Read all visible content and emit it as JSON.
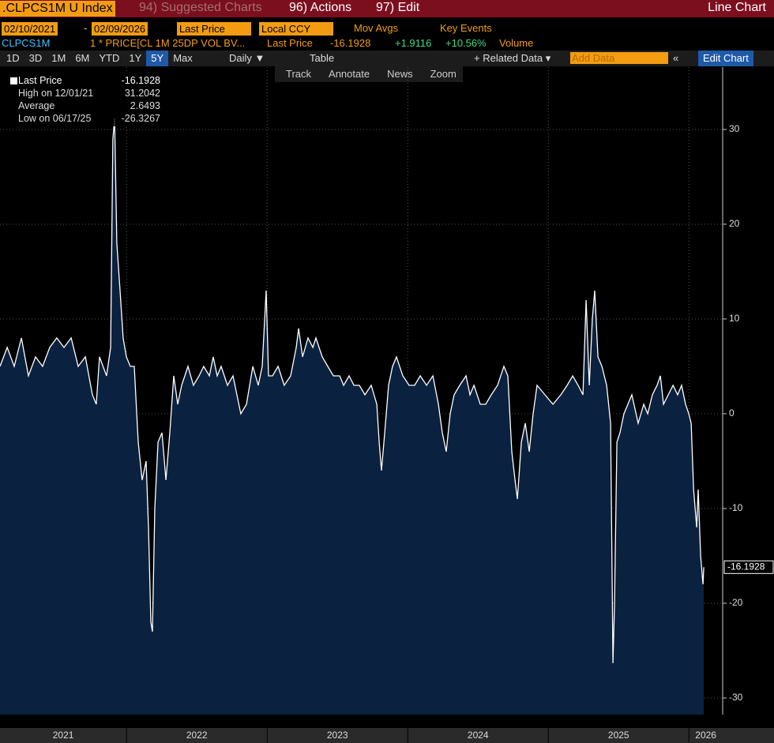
{
  "toolbar": {
    "ticker": ".CLPCS1M U Index",
    "suggested": "94) Suggested Charts",
    "actions": "96) Actions",
    "edit": "97) Edit",
    "chart_kind": "Line Chart"
  },
  "controls": {
    "start_date": "02/10/2021",
    "dash": "-",
    "end_date": "02/09/2026",
    "field": "Last Price",
    "currency": "Local CCY",
    "mov_avgs": "Mov Avgs",
    "key_events": "Key Events"
  },
  "security_line": {
    "name": "CLPCS1M",
    "expression": "1 * PRICE[CL 1M 25DP VOL BV...",
    "field": "Last Price",
    "last": "-16.1928",
    "change": "+1.9116",
    "pct_change": "+10.56%",
    "volume": "Volume"
  },
  "periods": [
    "1D",
    "3D",
    "1M",
    "6M",
    "YTD",
    "1Y",
    "5Y",
    "Max"
  ],
  "frequency": "Daily ▼",
  "table": "Table",
  "related_data": "+ Related Data ▾",
  "add_data": "Add Data",
  "collapse": "«",
  "edit_chart": "Edit Chart",
  "tools": [
    "Track",
    "Annotate",
    "News",
    "Zoom"
  ],
  "chart_data": {
    "type": "line",
    "x": [
      2021.1,
      2021.151,
      2021.201,
      2021.252,
      2021.302,
      2021.353,
      2021.403,
      2021.454,
      2021.504,
      2021.555,
      2021.606,
      2021.656,
      2021.707,
      2021.757,
      2021.785,
      2021.808,
      2021.858,
      2021.887,
      2021.903,
      2021.915,
      2021.931,
      2021.954,
      2021.976,
      2021.999,
      2022.027,
      2022.055,
      2022.083,
      2022.111,
      2022.139,
      2022.156,
      2022.173,
      2022.184,
      2022.201,
      2022.224,
      2022.252,
      2022.28,
      2022.308,
      2022.336,
      2022.364,
      2022.392,
      2022.437,
      2022.476,
      2022.516,
      2022.549,
      2022.589,
      2022.617,
      2022.645,
      2022.673,
      2022.718,
      2022.757,
      2022.813,
      2022.853,
      2022.898,
      2022.937,
      2022.965,
      2022.993,
      2023.01,
      2023.038,
      2023.078,
      2023.122,
      2023.167,
      2023.207,
      2023.224,
      2023.252,
      2023.291,
      2023.325,
      2023.347,
      2023.392,
      2023.431,
      2023.471,
      2023.516,
      2023.544,
      2023.583,
      2023.617,
      2023.656,
      2023.696,
      2023.74,
      2023.78,
      2023.797,
      2023.813,
      2023.836,
      2023.864,
      2023.892,
      2023.92,
      2023.965,
      2024.01,
      2024.049,
      2024.089,
      2024.134,
      2024.179,
      2024.218,
      2024.246,
      2024.274,
      2024.302,
      2024.33,
      2024.37,
      2024.415,
      2024.443,
      2024.471,
      2024.516,
      2024.555,
      2024.594,
      2024.639,
      2024.684,
      2024.712,
      2024.74,
      2024.763,
      2024.78,
      2024.808,
      2024.836,
      2024.864,
      2024.892,
      2024.92,
      2024.976,
      2025.033,
      2025.089,
      2025.134,
      2025.173,
      2025.212,
      2025.246,
      2025.269,
      2025.291,
      2025.313,
      2025.33,
      2025.353,
      2025.381,
      2025.415,
      2025.443,
      2025.46,
      2025.471,
      2025.488,
      2025.51,
      2025.538,
      2025.566,
      2025.594,
      2025.639,
      2025.679,
      2025.707,
      2025.74,
      2025.774,
      2025.797,
      2025.819,
      2025.853,
      2025.887,
      2025.92,
      2025.948,
      2025.976,
      2025.999,
      2026.016,
      2026.033,
      2026.055,
      2026.066,
      2026.083,
      2026.1,
      2026.106
    ],
    "series": [
      {
        "name": "Last Price",
        "color": "#ffffff",
        "fill": "#0b2140",
        "values": [
          5,
          7,
          5,
          8,
          4,
          6,
          5,
          7,
          8,
          7,
          8,
          5,
          6,
          2,
          1,
          6,
          4,
          7,
          29,
          31.2042,
          18,
          13,
          8,
          6,
          5,
          5,
          -3,
          -7,
          -5,
          -12,
          -22,
          -23,
          -10,
          -3,
          -2,
          -7,
          -2,
          4,
          1,
          3,
          5,
          3,
          4,
          5,
          4,
          6,
          4,
          5,
          3,
          4,
          0,
          1,
          5,
          3,
          5,
          13,
          4,
          4,
          5,
          3,
          4,
          7,
          9,
          6,
          8,
          7,
          8,
          6,
          5,
          4,
          4,
          3,
          4,
          3,
          3,
          2,
          3,
          1,
          -3,
          -6,
          -2,
          3,
          5,
          6,
          4,
          3,
          3,
          4,
          3,
          4,
          1,
          -2,
          -4,
          0,
          2,
          3,
          4,
          2,
          3,
          1,
          1,
          2,
          3,
          5,
          4,
          -4,
          -7,
          -9,
          -3,
          -1,
          -4,
          0,
          3,
          2,
          1,
          2,
          3,
          4,
          3,
          2,
          12,
          3,
          10,
          13,
          6,
          5,
          3,
          -1,
          -26.3267,
          -20,
          -3,
          -2,
          0,
          1,
          2,
          -1,
          1,
          0,
          2,
          3,
          4,
          1,
          2,
          3,
          2,
          3,
          1,
          0,
          -1,
          -8,
          -12,
          -8,
          -15,
          -18,
          -16.1928
        ]
      }
    ],
    "last_value": "-16.1928",
    "stats": [
      {
        "label": "High on 12/01/21",
        "value": "31.2042"
      },
      {
        "label": "Average",
        "value": "2.6493"
      },
      {
        "label": "Low on 06/17/25",
        "value": "-26.3267"
      }
    ],
    "xlim": [
      2021.1,
      2026.24
    ],
    "ylim": [
      -31.75,
      36.58
    ],
    "xticks": [
      {
        "value": 2021.55,
        "label": "2021"
      },
      {
        "value": 2022.5,
        "label": "2022"
      },
      {
        "value": 2023.5,
        "label": "2023"
      },
      {
        "value": 2024.5,
        "label": "2024"
      },
      {
        "value": 2025.5,
        "label": "2025"
      },
      {
        "value": 2026.12,
        "label": "2026"
      }
    ],
    "yticks": [
      -30,
      -20,
      -10,
      0,
      10,
      20,
      30
    ],
    "grid": true
  }
}
